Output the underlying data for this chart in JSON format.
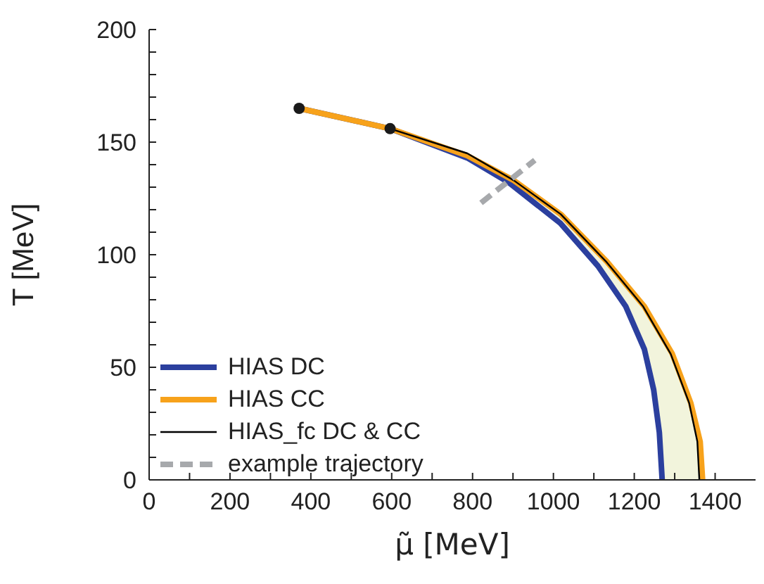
{
  "chart_data": {
    "type": "line",
    "xlabel": "μ̃ [MeV]",
    "ylabel": "T [MeV]",
    "xlim": [
      0,
      1500
    ],
    "ylim": [
      0,
      200
    ],
    "xticks": [
      0,
      {
        "value": 100,
        "label": null
      },
      200,
      {
        "value": 300,
        "label": null
      },
      400,
      {
        "value": 500,
        "label": null
      },
      600,
      {
        "value": 700,
        "label": null
      },
      800,
      {
        "value": 900,
        "label": null
      },
      1000,
      {
        "value": 1100,
        "label": null
      },
      1200,
      {
        "value": 1300,
        "label": null
      },
      1400
    ],
    "yticks": [
      0,
      {
        "value": 10,
        "label": null
      },
      {
        "value": 20,
        "label": null
      },
      {
        "value": 30,
        "label": null
      },
      {
        "value": 40,
        "label": null
      },
      50,
      {
        "value": 60,
        "label": null
      },
      {
        "value": 70,
        "label": null
      },
      {
        "value": 80,
        "label": null
      },
      {
        "value": 90,
        "label": null
      },
      100,
      {
        "value": 110,
        "label": null
      },
      {
        "value": 120,
        "label": null
      },
      {
        "value": 130,
        "label": null
      },
      {
        "value": 140,
        "label": null
      },
      150,
      {
        "value": 160,
        "label": null
      },
      {
        "value": 170,
        "label": null
      },
      {
        "value": 180,
        "label": null
      },
      {
        "value": 190,
        "label": null
      },
      200
    ],
    "grid": false,
    "legend": "bottom left",
    "series": [
      {
        "name": "HIAS DC",
        "color": "#2b3f9e",
        "line_style": "solid",
        "x": [
          371,
          596,
          787,
          890,
          1017,
          1110,
          1179,
          1225,
          1248,
          1262,
          1269
        ],
        "values": [
          165,
          156,
          143,
          132,
          114,
          95,
          77,
          58,
          40,
          21,
          0
        ]
      },
      {
        "name": "HIAS CC",
        "color": "#f7a21b",
        "line_style": "solid",
        "x": [
          371,
          596,
          787,
          902,
          1018,
          1132,
          1225,
          1294,
          1340,
          1363,
          1369
        ],
        "values": [
          165,
          156,
          144,
          133,
          118,
          97,
          77,
          56,
          34,
          17,
          0
        ]
      },
      {
        "name": "HIAS_fc DC & CC",
        "color": "#000000",
        "line_style": "solid",
        "x": [
          596,
          787,
          902,
          1018,
          1130,
          1222,
          1290,
          1336,
          1356,
          1361
        ],
        "values": [
          156,
          145,
          133,
          118,
          97,
          77,
          56,
          34,
          17,
          0
        ]
      },
      {
        "name": "example trajectory",
        "color": "#a7a9ac",
        "line_style": "dashed",
        "x": [
          821,
          954
        ],
        "values": [
          123,
          142
        ]
      },
      {
        "type": "scatter",
        "color": "#1a1a1a",
        "marker": "circle",
        "x": [
          371,
          596
        ],
        "values": [
          165,
          156
        ]
      }
    ]
  }
}
